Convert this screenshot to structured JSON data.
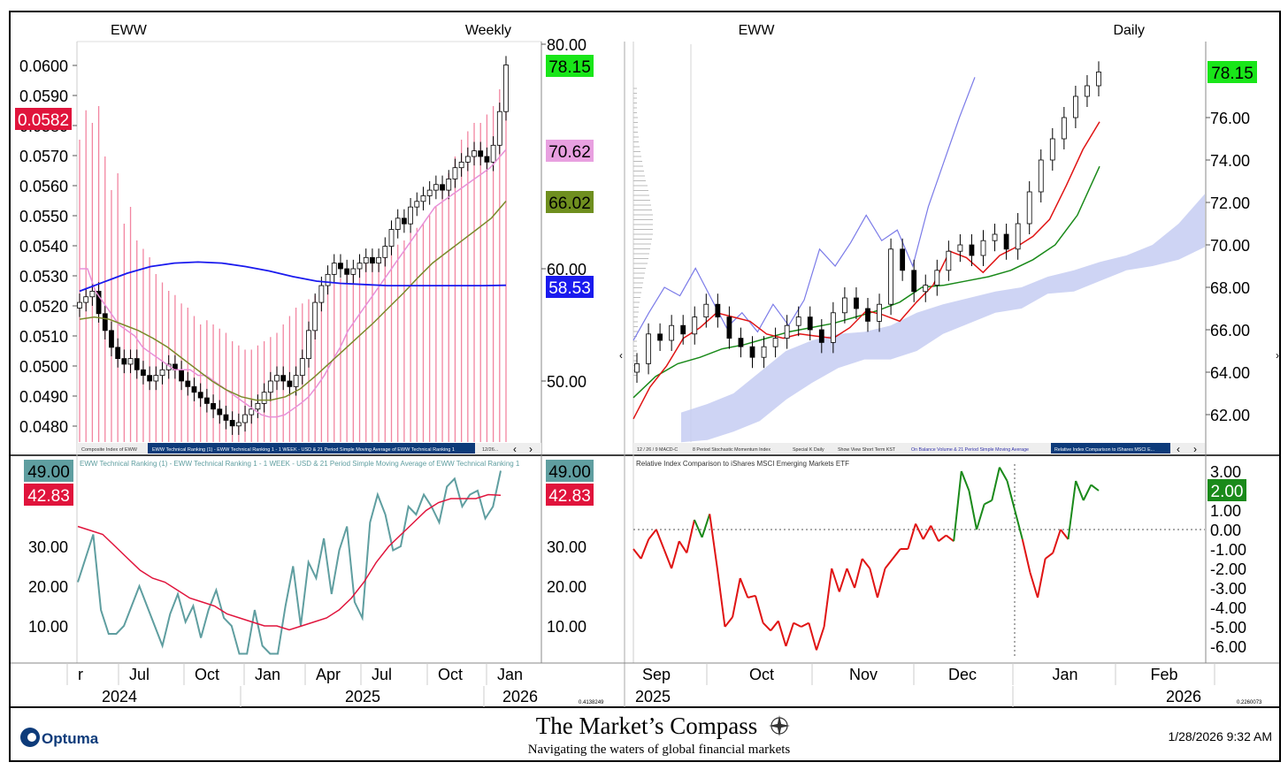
{
  "weekly": {
    "symbol": "EWW",
    "period": "Weekly",
    "left_axis": [
      "0.0600",
      "0.0590",
      "0.0580",
      "0.0570",
      "0.0560",
      "0.0550",
      "0.0540",
      "0.0530",
      "0.0520",
      "0.0510",
      "0.0500",
      "0.0490",
      "0.0480"
    ],
    "right_axis": [
      "80.00",
      "60.00",
      "50.00"
    ],
    "price_badges": [
      {
        "value": "78.15",
        "color": "#19e619"
      },
      {
        "value": "70.62",
        "color": "#e8a0e0"
      },
      {
        "value": "66.02",
        "color": "#6f8f1f"
      },
      {
        "value": "58.53",
        "color": "#1a1aee"
      }
    ],
    "ratio_badge": {
      "value": "0.0582",
      "color": "#e0143c"
    },
    "tabs": [
      "Composite Index of EWW",
      "EWW Technical Ranking (1) - EWW Technical Ranking 1 - 1 WEEK - USD & 21 Period Simple Moving Average of EWW Technical Ranking 1",
      "12/26..."
    ],
    "sub_title": "EWW Technical Ranking (1) - EWW Technical Ranking  1 - 1 WEEK - USD & 21 Period Simple Moving Average of EWW Technical Ranking  1",
    "sub_axis": [
      "30.00",
      "20.00",
      "10.00"
    ],
    "sub_badges": [
      {
        "value": "49.00",
        "color": "#5f9ea0"
      },
      {
        "value": "42.83",
        "color": "#e0143c"
      }
    ],
    "x_months": [
      "Apr",
      "Jul",
      "Oct",
      "Jan",
      "Apr",
      "Jul",
      "Oct",
      "Jan"
    ],
    "x_years": [
      "2024",
      "2025",
      "2026"
    ],
    "scale_readout": "0.4138249"
  },
  "daily": {
    "symbol": "EWW",
    "period": "Daily",
    "right_axis": [
      "76.00",
      "74.00",
      "72.00",
      "70.00",
      "68.00",
      "66.00",
      "64.00",
      "62.00"
    ],
    "price_badge": {
      "value": "78.15",
      "color": "#19e619"
    },
    "tabs": [
      "12 / 26 / 9 MACD-C",
      "8 Period Stochastic Momentum Index",
      "Special K Daily",
      "Show View Short Term KST",
      "On Balance Volume & 21 Period Simple Moving Average",
      "Relative Index Comparison to iShares MSCI E..."
    ],
    "sub_title": "Relative Index Comparison to iShares MSCI Emerging Markets ETF",
    "sub_axis": [
      "3.00",
      "1.00",
      "0.00",
      "-1.00",
      "-2.00",
      "-3.00",
      "-4.00",
      "-5.00",
      "-6.00"
    ],
    "sub_badge": {
      "value": "2.00",
      "color": "#1a8a1a"
    },
    "x_months": [
      "Sep",
      "Oct",
      "Nov",
      "Dec",
      "Jan",
      "Feb"
    ],
    "x_years": [
      "2025",
      "2026"
    ],
    "scale_readout": "0.2260073"
  },
  "footer": {
    "brand": "Optuma",
    "title": "The Market’s Compass",
    "subtitle": "Navigating the waters of global financial markets",
    "timestamp": "1/28/2026 9:32 AM"
  },
  "chart_data": [
    {
      "type": "candlestick",
      "title": "EWW Weekly",
      "ylim_right": [
        45,
        80
      ],
      "ylim_left_ratio": [
        0.0475,
        0.0603
      ],
      "series": [
        {
          "name": "EWW close",
          "values": [
            57,
            57.5,
            58,
            56,
            54.5,
            53,
            52,
            51.5,
            52,
            51,
            50.5,
            50,
            50.5,
            51,
            51.5,
            51,
            50,
            49.5,
            49,
            48.5,
            48,
            47.5,
            47,
            46.5,
            46,
            46.3,
            47,
            47.5,
            48,
            49,
            50,
            50.5,
            50,
            49.5,
            50.5,
            52,
            54.5,
            57,
            58.5,
            59.5,
            60.5,
            60,
            59.5,
            60,
            60.5,
            61,
            60.5,
            61,
            62,
            63.5,
            64.5,
            64,
            65.5,
            66,
            66.5,
            67,
            67.5,
            67,
            68,
            69,
            69.5,
            70,
            70.5,
            70,
            69.5,
            71,
            74,
            78.15
          ]
        },
        {
          "name": "10 Week SMA",
          "values": [
            60,
            60,
            58,
            57,
            56,
            55,
            54.5,
            54,
            53,
            52.5,
            52,
            51.5,
            51,
            51,
            51,
            50.5,
            50.5,
            50,
            49.5,
            49,
            48.5,
            48,
            47.5,
            47,
            46.8,
            46.8,
            47,
            47.5,
            48,
            48.6,
            49.5,
            50.5,
            51.8,
            53,
            54.5,
            55.5,
            56.5,
            57.5,
            58.5,
            59.5,
            60.5,
            61.5,
            62.5,
            63.5,
            64.5,
            65.5,
            66,
            66.5,
            67,
            67.5,
            68,
            68.5,
            69,
            69.8,
            70.62
          ]
        },
        {
          "name": "40 Week SMA",
          "values": [
            55.5,
            55.7,
            55.5,
            55,
            54.5,
            53.8,
            53,
            52,
            51,
            50,
            49.2,
            48.6,
            48.3,
            48.3,
            48.6,
            49.3,
            50.4,
            51.6,
            52.8,
            54,
            55.2,
            56.5,
            57.8,
            59.2,
            60.5,
            61.5,
            62.5,
            63.5,
            64.5,
            66.02
          ]
        },
        {
          "name": "Ratio",
          "values": [
            0.0548,
            0.0555,
            0.0553,
            0.0528,
            0.0519,
            0.0505,
            0.05,
            0.0495,
            0.0485,
            0.0487,
            0.0491,
            0.0502,
            0.0496,
            0.052,
            0.053,
            0.0533,
            0.054,
            0.055,
            0.0555,
            0.056,
            0.057,
            0.0582
          ]
        }
      ]
    },
    {
      "type": "line",
      "title": "EWW Technical Ranking 1 WEEK",
      "ylim": [
        0,
        50
      ],
      "series": [
        {
          "name": "EWW Technical Ranking",
          "values": [
            21,
            27,
            33,
            14,
            8,
            8,
            10,
            15,
            20,
            15,
            10,
            5,
            13,
            18,
            11,
            15,
            7,
            14,
            19,
            12,
            10,
            3,
            3,
            14,
            5,
            3,
            3,
            15,
            25,
            10,
            26,
            22,
            32,
            18,
            29,
            35,
            16,
            12,
            36,
            43,
            38,
            29,
            30,
            40,
            38,
            43,
            40,
            36,
            45,
            47,
            40,
            43,
            44,
            37,
            40,
            49
          ]
        },
        {
          "name": "21 Period SMA",
          "values": [
            35,
            34,
            33,
            30,
            27,
            24,
            22,
            21,
            19,
            17,
            16,
            15,
            13,
            12,
            11,
            10,
            10,
            9,
            10,
            11,
            12,
            14,
            17,
            21,
            26,
            30,
            33,
            36,
            39,
            41,
            42,
            42,
            42,
            43,
            42.83
          ]
        }
      ]
    },
    {
      "type": "candlestick",
      "title": "EWW Daily",
      "ylim": [
        60.5,
        79
      ],
      "series": [
        {
          "name": "EWW close",
          "values": [
            64.4,
            65.8,
            65.5,
            66.2,
            65.8,
            66.6,
            67.2,
            66.6,
            65.6,
            65.2,
            64.7,
            65.2,
            65.6,
            66.2,
            66.6,
            66.0,
            65.4,
            66.8,
            67.5,
            67.0,
            66.4,
            67.2,
            69.8,
            68.8,
            67.8,
            68.1,
            68.8,
            69.7,
            70.0,
            69.5,
            70.2,
            70.5,
            69.8,
            71.0,
            72.5,
            74.0,
            75.0,
            76.0,
            77.0,
            77.5,
            78.15
          ]
        },
        {
          "name": "Conversion line",
          "values": [
            61.8,
            63.3,
            64.3,
            65.6,
            66.1,
            66.8,
            66.6,
            66.4,
            65.8,
            65.6,
            65.8,
            65.7,
            65.6,
            66.1,
            66.9,
            66.7,
            66.4,
            67.3,
            68.1,
            69.7,
            69.4,
            68.7,
            69.5,
            69.9,
            70.4,
            71.2,
            72.8,
            74.5,
            75.8
          ]
        },
        {
          "name": "Base line",
          "values": [
            62.8,
            63.8,
            64.4,
            64.7,
            65.1,
            65.3,
            65.6,
            65.9,
            66.1,
            66.3,
            66.6,
            66.9,
            67.3,
            68.0,
            68.1,
            68.3,
            68.5,
            68.8,
            69.3,
            70.0,
            71.4,
            73.7
          ]
        },
        {
          "name": "Lagging span",
          "values": [
            65.5,
            66.8,
            68.0,
            67.6,
            68.9,
            67.5,
            66.1,
            66.8,
            65.9,
            67.2,
            66.2,
            67.4,
            69.8,
            69.0,
            70.1,
            71.4,
            70.2,
            70.7,
            69.0,
            71.8,
            73.9,
            76.0,
            77.9
          ]
        }
      ]
    },
    {
      "type": "line",
      "title": "Relative Index Comparison to iShares MSCI Emerging Markets ETF",
      "ylim": [
        -6.5,
        3.5
      ],
      "series": [
        {
          "name": "Relative Index",
          "values": [
            -1,
            -1.5,
            -0.5,
            0,
            -1,
            -2,
            -0.6,
            -1.2,
            0.5,
            -0.4,
            0.8,
            -2,
            -5,
            -4.5,
            -2.5,
            -3.5,
            -3.4,
            -4.8,
            -5.2,
            -4.7,
            -6,
            -4.8,
            -5,
            -4.8,
            -6.2,
            -5,
            -2,
            -3.2,
            -2,
            -3,
            -1.5,
            -2,
            -3.5,
            -2,
            -1.5,
            -1,
            -1,
            0.3,
            -0.5,
            0.2,
            -0.6,
            -0.3,
            -0.6,
            3,
            2,
            0,
            1.3,
            1.5,
            3.2,
            2.5,
            1,
            -0.5,
            -2.2,
            -3.5,
            -1.5,
            -1.2,
            0,
            -0.5,
            2.5,
            1.5,
            2.3,
            2.0
          ]
        }
      ]
    }
  ]
}
